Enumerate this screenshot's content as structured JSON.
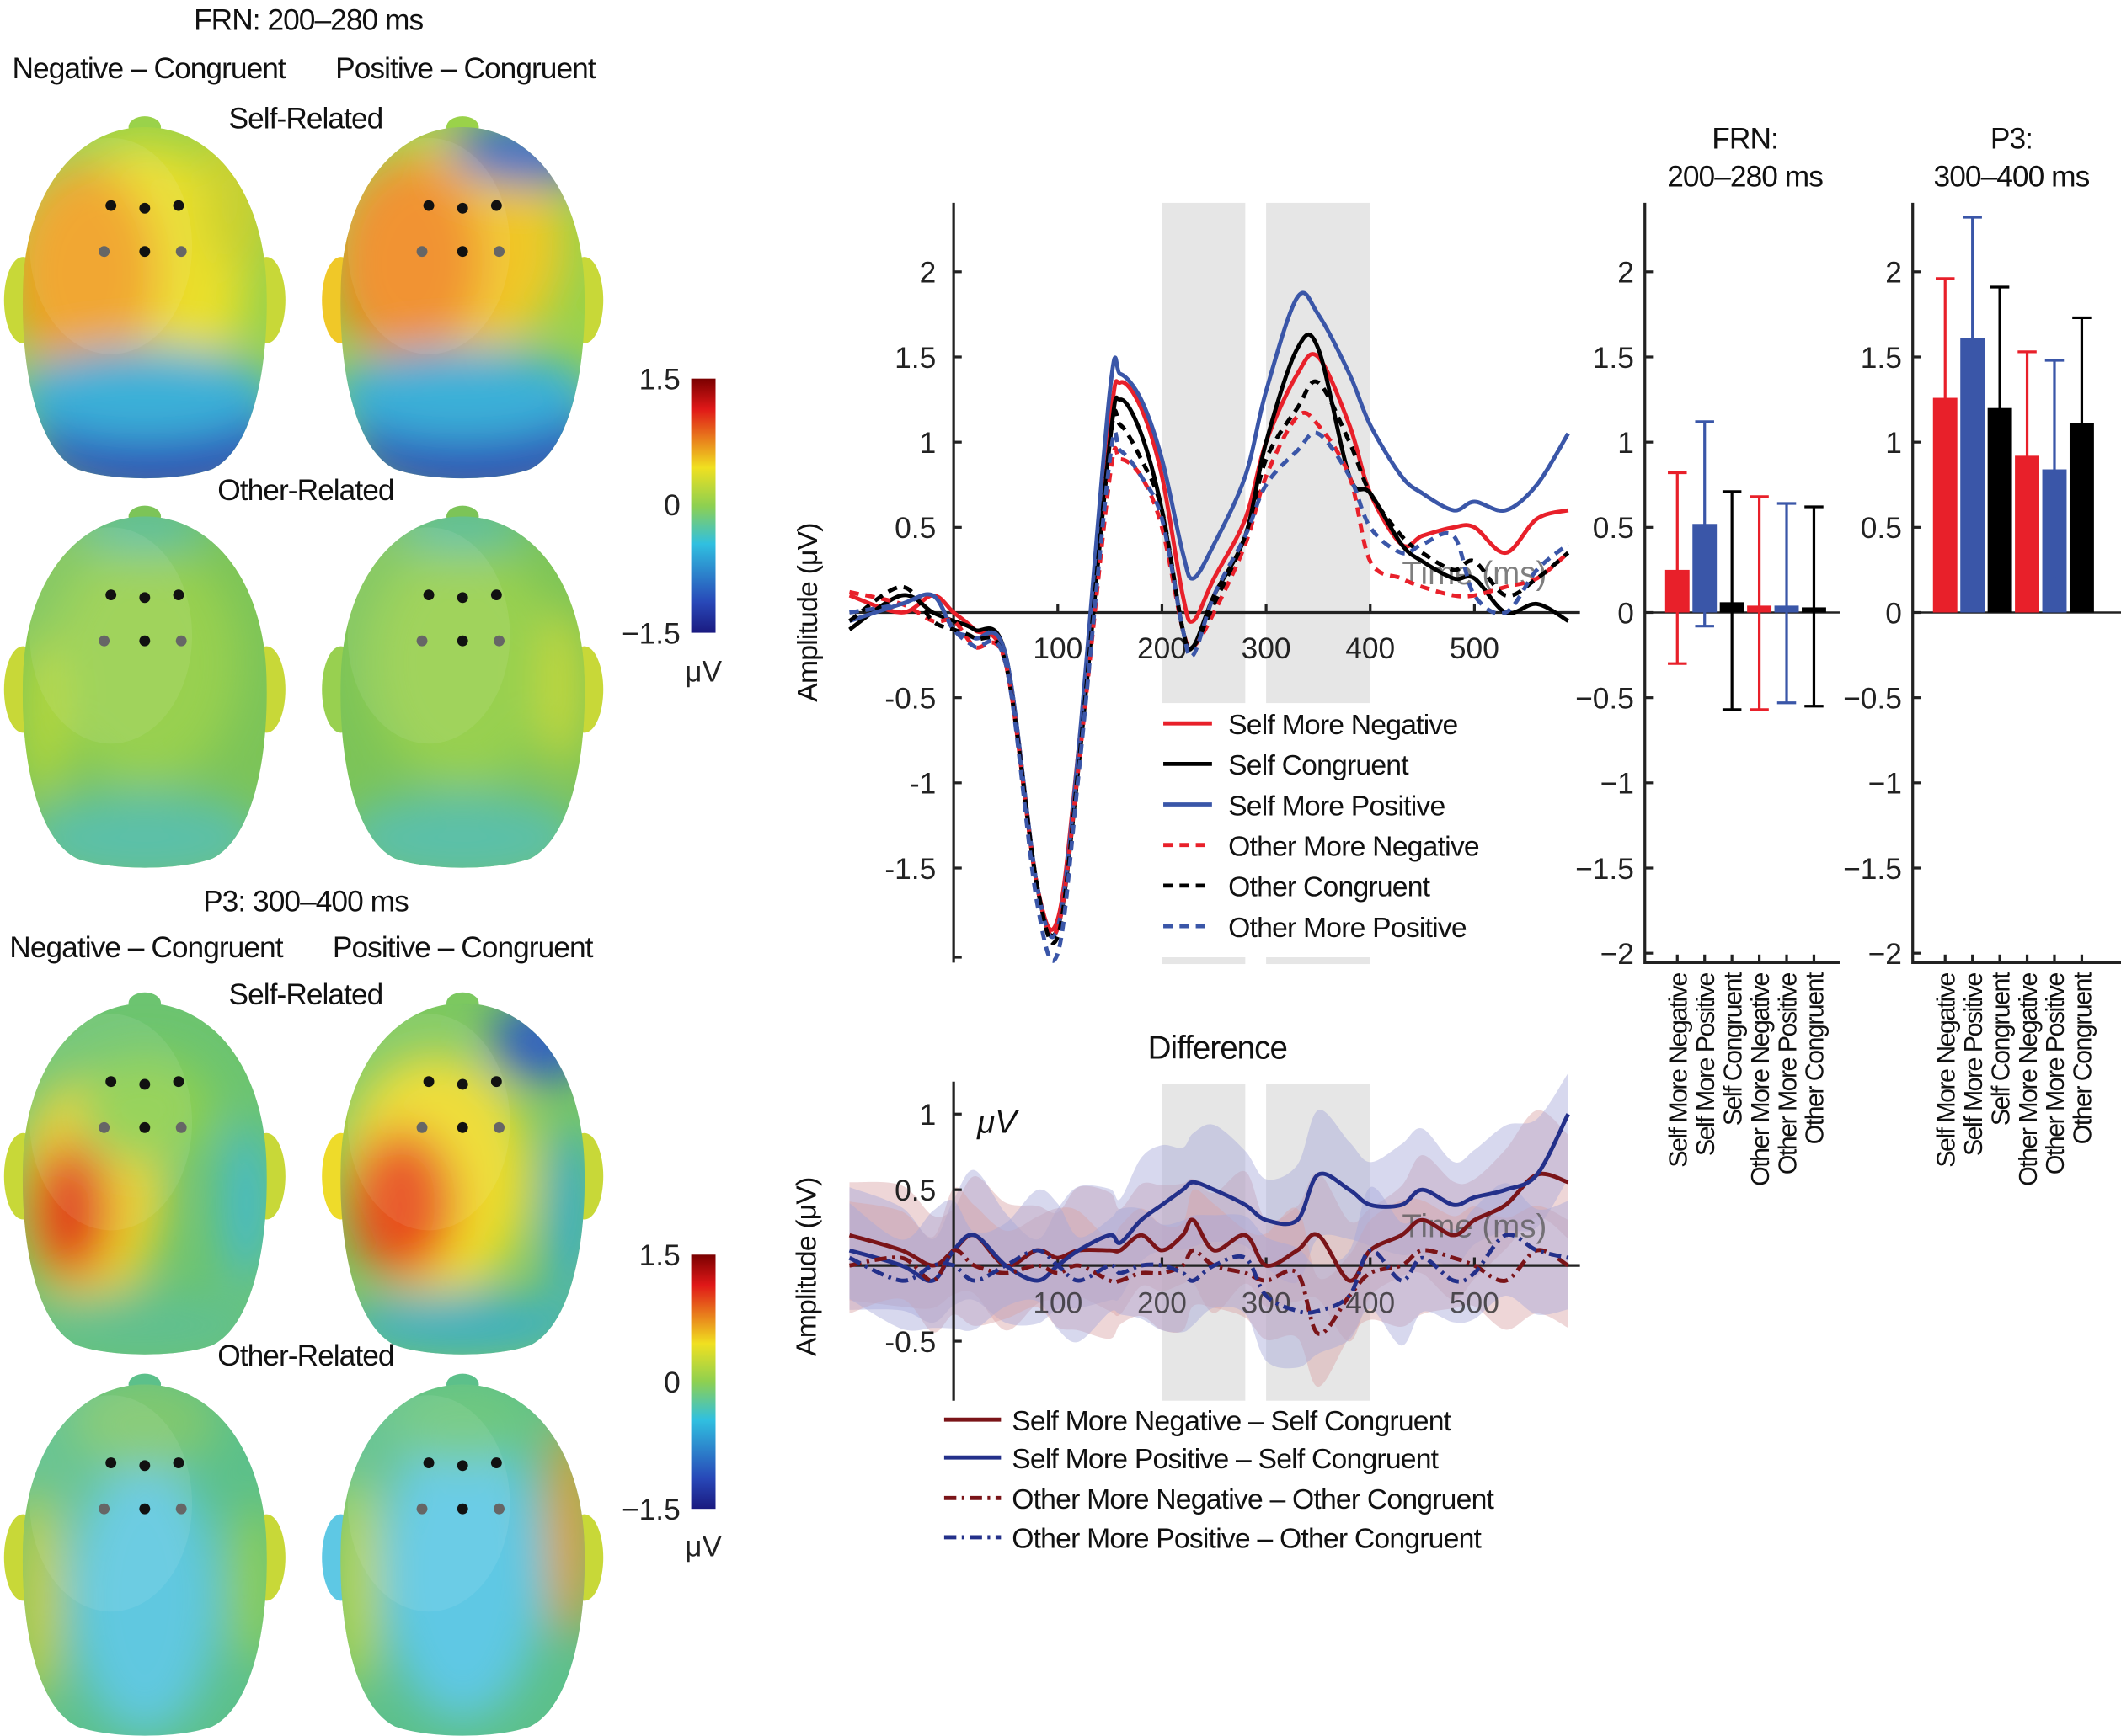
{
  "topomaps": {
    "frn_title": "FRN: 200–280 ms",
    "p3_title": "P3: 300–400 ms",
    "col_negative": "Negative – Congruent",
    "col_positive": "Positive – Congruent",
    "row_self": "Self-Related",
    "row_other": "Other-Related",
    "colorbar": {
      "max": "1.5",
      "mid": "0",
      "min": "−1.5",
      "unit": "μV"
    }
  },
  "chart_data": [
    {
      "type": "line",
      "title": "",
      "xlabel": "Time (ms)",
      "ylabel": "Amplitude (μV)",
      "xlim": [
        -100,
        600
      ],
      "ylim": [
        -2,
        2.4
      ],
      "x_ticks": [
        "100",
        "200",
        "300",
        "400",
        "500"
      ],
      "y_ticks": [
        "2",
        "1.5",
        "1",
        "0.5",
        "-0.5",
        "-1",
        "-1.5"
      ],
      "shaded_windows_ms": [
        [
          200,
          280
        ],
        [
          300,
          400
        ]
      ],
      "legend_position": "bottom-center",
      "x": [
        -100,
        -50,
        -20,
        0,
        20,
        50,
        80,
        100,
        120,
        150,
        160,
        180,
        200,
        220,
        230,
        250,
        280,
        300,
        330,
        350,
        380,
        400,
        430,
        450,
        480,
        500,
        530,
        560,
        590
      ],
      "series": [
        {
          "name": "Self More Negative",
          "color": "#e8202a",
          "style": "solid",
          "values": [
            0.1,
            0,
            0.1,
            0,
            -0.1,
            -0.3,
            -1.6,
            -1.8,
            -0.8,
            1.1,
            1.35,
            1.2,
            0.8,
            0.1,
            -0.05,
            0.2,
            0.55,
            1.0,
            1.4,
            1.5,
            1.1,
            0.7,
            0.4,
            0.45,
            0.5,
            0.5,
            0.35,
            0.55,
            0.6
          ]
        },
        {
          "name": "Self Congruent",
          "color": "#000000",
          "style": "solid",
          "values": [
            -0.1,
            0.1,
            0,
            -0.05,
            -0.1,
            -0.25,
            -1.6,
            -1.85,
            -0.9,
            1.0,
            1.25,
            1.05,
            0.6,
            -0.1,
            -0.2,
            0.1,
            0.45,
            1.0,
            1.55,
            1.55,
            0.8,
            0.7,
            0.4,
            0.3,
            0.2,
            0.2,
            0,
            0.05,
            -0.05
          ]
        },
        {
          "name": "Self More Positive",
          "color": "#3a56a8",
          "style": "solid",
          "values": [
            -0.05,
            0.05,
            0.1,
            -0.1,
            -0.15,
            -0.25,
            -1.6,
            -1.85,
            -0.8,
            1.3,
            1.4,
            1.25,
            0.9,
            0.35,
            0.2,
            0.4,
            0.8,
            1.3,
            1.85,
            1.75,
            1.4,
            1.1,
            0.8,
            0.7,
            0.6,
            0.65,
            0.6,
            0.75,
            1.05
          ]
        },
        {
          "name": "Other More Negative",
          "color": "#e8202a",
          "style": "dashed",
          "values": [
            0.12,
            0.05,
            -0.05,
            -0.05,
            -0.2,
            -0.3,
            -1.6,
            -1.85,
            -0.9,
            0.8,
            0.9,
            0.8,
            0.5,
            -0.1,
            -0.2,
            0,
            0.4,
            0.8,
            1.15,
            1.1,
            0.8,
            0.3,
            0.2,
            0.15,
            0.1,
            0.1,
            0.15,
            0.2,
            0.35
          ]
        },
        {
          "name": "Other Congruent",
          "color": "#000000",
          "style": "dashed",
          "values": [
            -0.05,
            0.15,
            -0.05,
            -0.1,
            -0.15,
            -0.3,
            -1.6,
            -1.9,
            -0.9,
            1.0,
            1.1,
            0.9,
            0.6,
            -0.1,
            -0.2,
            0.05,
            0.45,
            0.9,
            1.2,
            1.35,
            1.0,
            0.7,
            0.45,
            0.35,
            0.25,
            0.3,
            0.1,
            0.2,
            0.35
          ]
        },
        {
          "name": "Other More Positive",
          "color": "#3a56a8",
          "style": "dashed",
          "values": [
            0,
            0.05,
            0.1,
            -0.1,
            -0.2,
            -0.3,
            -1.7,
            -2.0,
            -0.95,
            0.9,
            0.95,
            0.8,
            0.55,
            -0.1,
            -0.25,
            0.1,
            0.45,
            0.75,
            0.95,
            1.05,
            0.8,
            0.5,
            0.35,
            0.4,
            0.45,
            0.1,
            0,
            0.25,
            0.4
          ]
        }
      ]
    },
    {
      "type": "line",
      "title": "Difference",
      "xlabel": "Time (ms)",
      "ylabel": "Amplitude (μV)",
      "unit_label": "μV",
      "xlim": [
        -100,
        600
      ],
      "ylim": [
        -0.9,
        1.2
      ],
      "x_ticks": [
        "100",
        "200",
        "300",
        "400",
        "500"
      ],
      "y_ticks": [
        "1",
        "0.5",
        "-0.5"
      ],
      "shaded_windows_ms": [
        [
          200,
          280
        ],
        [
          300,
          400
        ]
      ],
      "ci_halfwidth": 0.35,
      "legend_position": "bottom",
      "x": [
        -100,
        -50,
        -20,
        0,
        20,
        50,
        80,
        100,
        120,
        150,
        160,
        180,
        200,
        220,
        230,
        250,
        280,
        300,
        330,
        350,
        380,
        400,
        430,
        450,
        480,
        500,
        530,
        560,
        590
      ],
      "series": [
        {
          "name": "Self More Negative – Self Congruent",
          "color": "#7a1418",
          "band": "#d9a3a6",
          "style": "solid",
          "values": [
            0.2,
            0.1,
            0,
            0.1,
            0.2,
            0,
            0.1,
            0.05,
            0.1,
            0.1,
            0.1,
            0.2,
            0.1,
            0.2,
            0.3,
            0.1,
            0.2,
            0,
            0.1,
            0.2,
            -0.1,
            0.1,
            0.2,
            0.3,
            0.2,
            0.3,
            0.4,
            0.6,
            0.55
          ]
        },
        {
          "name": "Self More Positive – Self Congruent",
          "color": "#23308a",
          "band": "#a6a8da",
          "style": "solid",
          "values": [
            0.1,
            0,
            -0.1,
            0.1,
            0.2,
            0,
            -0.1,
            0,
            0.1,
            0.2,
            0.15,
            0.3,
            0.4,
            0.5,
            0.55,
            0.5,
            0.4,
            0.3,
            0.3,
            0.6,
            0.5,
            0.4,
            0.4,
            0.5,
            0.4,
            0.45,
            0.5,
            0.6,
            1.0
          ]
        },
        {
          "name": "Other More Negative – Other Congruent",
          "color": "#7a1418",
          "band": "#d9a3a6",
          "style": "dashdot",
          "values": [
            0,
            0.05,
            -0.1,
            0.1,
            0,
            -0.05,
            0,
            -0.05,
            0,
            -0.1,
            -0.1,
            -0.05,
            -0.05,
            0,
            0.1,
            0,
            -0.05,
            -0.1,
            -0.05,
            -0.45,
            -0.2,
            -0.05,
            0,
            0.1,
            0.05,
            0,
            -0.1,
            0.1,
            0
          ]
        },
        {
          "name": "Other More Positive – Other Congruent",
          "color": "#23308a",
          "band": "#a6a8da",
          "style": "dashdot",
          "values": [
            0.05,
            -0.1,
            0,
            0,
            -0.1,
            0,
            0.1,
            0,
            -0.1,
            0,
            -0.05,
            0,
            0,
            -0.05,
            -0.1,
            0,
            0.05,
            -0.2,
            -0.3,
            -0.3,
            -0.2,
            0.1,
            -0.1,
            0.05,
            -0.1,
            -0.05,
            0.2,
            0.1,
            0.05
          ]
        }
      ]
    },
    {
      "type": "bar",
      "title": "FRN:",
      "subtitle": "200–280 ms",
      "ylim": [
        -2,
        2.4
      ],
      "y_ticks": [
        "2",
        "1.5",
        "1",
        "0.5",
        "0",
        "−0.5",
        "−1",
        "−1.5",
        "−2"
      ],
      "categories": [
        "Self More Negative",
        "Self More Positive",
        "Self Congruent",
        "Other More Negative",
        "Other More Positive",
        "Other Congruent"
      ],
      "colors": [
        "#e8202a",
        "#3a56a8",
        "#000000",
        "#e8202a",
        "#3a56a8",
        "#000000"
      ],
      "values": [
        0.25,
        0.52,
        0.06,
        0.04,
        0.04,
        0.03
      ],
      "error_low": [
        -0.3,
        -0.08,
        -0.57,
        -0.57,
        -0.53,
        -0.55
      ],
      "error_high": [
        0.82,
        1.12,
        0.71,
        0.68,
        0.64,
        0.62
      ]
    },
    {
      "type": "bar",
      "title": "P3:",
      "subtitle": "300–400 ms",
      "ylim": [
        -2,
        2.4
      ],
      "y_ticks": [
        "2",
        "1.5",
        "1",
        "0.5",
        "0",
        "−0.5",
        "−1",
        "−1.5",
        "−2"
      ],
      "categories": [
        "Self More Negative",
        "Self More Positive",
        "Self Congruent",
        "Other More Negative",
        "Other More Positive",
        "Other Congruent"
      ],
      "colors": [
        "#e8202a",
        "#3a56a8",
        "#000000",
        "#e8202a",
        "#3a56a8",
        "#000000"
      ],
      "values": [
        1.26,
        1.61,
        1.2,
        0.92,
        0.84,
        1.11
      ],
      "error_low": [
        0.56,
        0.9,
        0.49,
        0.31,
        0.2,
        0.49
      ],
      "error_high": [
        1.96,
        2.32,
        1.91,
        1.53,
        1.48,
        1.73
      ]
    }
  ]
}
